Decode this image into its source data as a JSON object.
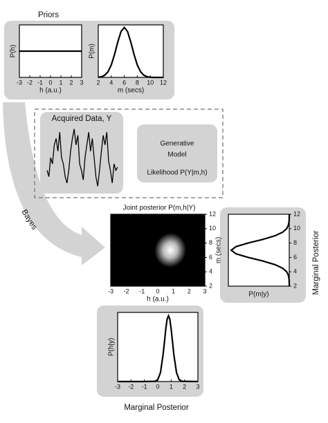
{
  "priors": {
    "title": "Priors",
    "h_plot": {
      "ylabel": "P(h)",
      "xlabel": "h (a.u.)",
      "xlim": [
        -3,
        3
      ],
      "xticks": [
        -3,
        -2,
        -1,
        0,
        1,
        2,
        3
      ],
      "ylim": [
        0,
        1
      ],
      "x": [
        -3,
        3
      ],
      "values": [
        0.5,
        0.5
      ]
    },
    "m_plot": {
      "ylabel": "P(m)",
      "xlabel": "m (secs)",
      "xlim": [
        2,
        12
      ],
      "xticks": [
        2,
        4,
        6,
        8,
        10,
        12
      ],
      "ylim": [
        0,
        1.05
      ],
      "x": [
        2,
        2.5,
        3,
        3.5,
        4,
        4.5,
        5,
        5.5,
        6,
        6.5,
        7,
        7.5,
        8,
        8.5,
        9,
        9.5,
        10,
        10.5,
        11,
        11.5,
        12
      ],
      "values": [
        0.004,
        0.014,
        0.044,
        0.114,
        0.249,
        0.458,
        0.707,
        0.917,
        1,
        0.917,
        0.707,
        0.458,
        0.249,
        0.114,
        0.044,
        0.014,
        0.004,
        0,
        0,
        0,
        0
      ]
    }
  },
  "data": {
    "title": "Acquired Data, Y",
    "ylim": [
      0,
      1
    ],
    "values": [
      0.3,
      0.2,
      0.5,
      0.4,
      0.7,
      0.8,
      0.6,
      0.9,
      0.5,
      0.4,
      0.2,
      0.1,
      0.3,
      0.6,
      0.8,
      0.95,
      0.7,
      0.85,
      0.4,
      0.3,
      0.15,
      0.5,
      0.7,
      0.9,
      0.6,
      0.8,
      0.5,
      0.2,
      0.05,
      0.3,
      0.6,
      0.85,
      0.7,
      0.9,
      0.45,
      0.3,
      0.1,
      0.4,
      0.3,
      0.35
    ]
  },
  "model": {
    "line1": "Generative",
    "line2": "Model",
    "likelihood": "Likelihood P(Y|m,h)"
  },
  "arrow_label": "Bayes",
  "joint": {
    "title": "Joint posterior P(m,h|Y)",
    "xlabel": "h (a.u.)",
    "ylabel": "m (secs)",
    "xlim": [
      -3,
      3
    ],
    "xticks": [
      -3,
      -2,
      -1,
      0,
      1,
      2,
      3
    ],
    "ylim": [
      2,
      12
    ],
    "yticks": [
      2,
      4,
      6,
      8,
      10,
      12
    ],
    "center": [
      0.8,
      7
    ],
    "spread": [
      0.5,
      1.2
    ]
  },
  "marginal_m": {
    "title": "Marginal Posterior",
    "xlabel": "P(m|y)",
    "ylim": [
      2,
      12
    ],
    "yticks": [
      2,
      4,
      6,
      8,
      10,
      12
    ],
    "xlim": [
      0,
      1.05
    ],
    "m": [
      2,
      2.5,
      3,
      3.5,
      4,
      4.5,
      5,
      5.5,
      6,
      6.5,
      7,
      7.5,
      8,
      8.5,
      9,
      9.5,
      10,
      10.5,
      11,
      11.5,
      12
    ],
    "values": [
      0,
      0,
      0.004,
      0.014,
      0.044,
      0.114,
      0.249,
      0.458,
      0.707,
      0.917,
      1,
      0.917,
      0.707,
      0.458,
      0.249,
      0.114,
      0.044,
      0.014,
      0.004,
      0,
      0
    ]
  },
  "marginal_h": {
    "title": "Marginal Posterior",
    "ylabel": "P(h|y)",
    "xlim": [
      -3,
      3
    ],
    "xticks": [
      -3,
      -2,
      -1,
      0,
      1,
      2,
      3
    ],
    "ylim": [
      0,
      1.05
    ],
    "x": [
      -3,
      -1,
      -0.2,
      0,
      0.2,
      0.4,
      0.5,
      0.6,
      0.7,
      0.8,
      0.9,
      1.0,
      1.1,
      1.2,
      1.4,
      1.6,
      1.8,
      3
    ],
    "values": [
      0,
      0,
      0.004,
      0.029,
      0.135,
      0.411,
      0.607,
      0.801,
      0.946,
      1,
      0.946,
      0.801,
      0.607,
      0.411,
      0.135,
      0.029,
      0.004,
      0
    ]
  }
}
